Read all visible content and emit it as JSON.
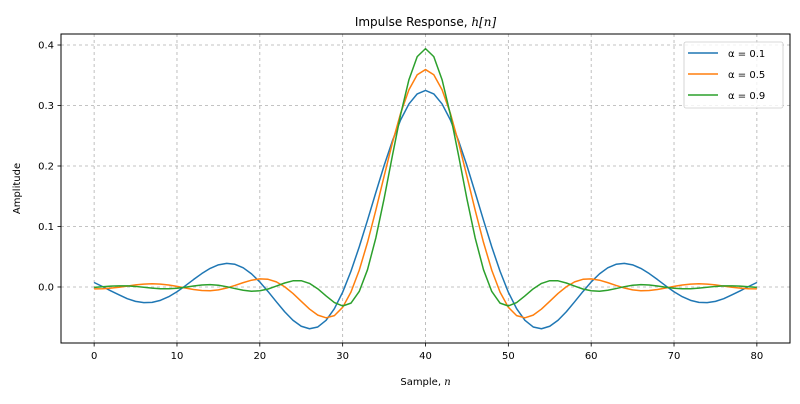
{
  "chart_data": {
    "type": "line",
    "title": {
      "text": "Impulse Response, ",
      "math": "h[n]"
    },
    "xlabel": {
      "text": "Sample, ",
      "math": "n"
    },
    "ylabel": "Amplitude",
    "xlim": [
      -4,
      84
    ],
    "ylim": [
      -0.0926,
      0.4182
    ],
    "xticks": [
      0,
      10,
      20,
      30,
      40,
      50,
      60,
      70,
      80
    ],
    "xtick_labels": [
      "0",
      "10",
      "20",
      "30",
      "40",
      "50",
      "60",
      "70",
      "80"
    ],
    "yticks": [
      0.0,
      0.1,
      0.2,
      0.3,
      0.4
    ],
    "ytick_labels": [
      "0.0",
      "0.1",
      "0.2",
      "0.3",
      "0.4"
    ],
    "grid": true,
    "grid_style": "dashed",
    "legend_position": "top-right",
    "x_start": 0,
    "x_step": 1,
    "series": [
      {
        "name": "α = 0.1",
        "color": "#1f77b4",
        "values": [
          0.0074,
          0.0008,
          -0.0064,
          -0.013,
          -0.0194,
          -0.0238,
          -0.0259,
          -0.0254,
          -0.0221,
          -0.0161,
          -0.0079,
          0.0019,
          0.0123,
          0.0222,
          0.0307,
          0.0366,
          0.0391,
          0.0375,
          0.0317,
          0.0217,
          0.0083,
          -0.0076,
          -0.0245,
          -0.0409,
          -0.055,
          -0.0649,
          -0.069,
          -0.0661,
          -0.0551,
          -0.0359,
          -0.0086,
          0.026,
          0.0663,
          0.1104,
          0.156,
          0.2006,
          0.2414,
          0.2762,
          0.3026,
          0.3192,
          0.3249,
          0.3192,
          0.3026,
          0.2762,
          0.2414,
          0.2006,
          0.156,
          0.1104,
          0.0663,
          0.026,
          -0.0086,
          -0.0359,
          -0.0551,
          -0.0661,
          -0.069,
          -0.0649,
          -0.055,
          -0.0409,
          -0.0245,
          -0.0076,
          0.0083,
          0.0217,
          0.0317,
          0.0375,
          0.0391,
          0.0366,
          0.0307,
          0.0222,
          0.0123,
          0.0019,
          -0.0079,
          -0.0161,
          -0.0221,
          -0.0254,
          -0.0259,
          -0.0238,
          -0.0194,
          -0.013,
          -0.0064,
          0.0008,
          0.0074
        ]
      },
      {
        "name": "α = 0.5",
        "color": "#ff7f0e",
        "values": [
          -0.0032,
          -0.0029,
          -0.0019,
          -0.0004,
          0.0015,
          0.0034,
          0.0048,
          0.0053,
          0.0048,
          0.0033,
          0.001,
          -0.0017,
          -0.0042,
          -0.0059,
          -0.0062,
          -0.0047,
          -0.0017,
          0.0025,
          0.0072,
          0.0112,
          0.0134,
          0.0127,
          0.0084,
          0.0004,
          -0.0107,
          -0.0237,
          -0.0365,
          -0.0465,
          -0.051,
          -0.0473,
          -0.0336,
          -0.0085,
          0.0277,
          0.0737,
          0.1267,
          0.183,
          0.2381,
          0.2872,
          0.326,
          0.3508,
          0.3594,
          0.3508,
          0.326,
          0.2872,
          0.2381,
          0.183,
          0.1267,
          0.0737,
          0.0277,
          -0.0085,
          -0.0336,
          -0.0473,
          -0.051,
          -0.0465,
          -0.0365,
          -0.0237,
          -0.0107,
          0.0004,
          0.0084,
          0.0127,
          0.0134,
          0.0112,
          0.0072,
          0.0025,
          -0.0017,
          -0.0047,
          -0.0062,
          -0.0059,
          -0.0042,
          -0.0017,
          0.001,
          0.0033,
          0.0048,
          0.0053,
          0.0048,
          0.0034,
          0.0015,
          -0.0004,
          -0.0019,
          -0.0029,
          -0.0032
        ]
      },
      {
        "name": "α = 0.9",
        "color": "#2ca02c",
        "values": [
          -0.0007,
          0.0004,
          0.0014,
          0.0019,
          0.0018,
          0.0009,
          -0.0005,
          -0.0019,
          -0.0029,
          -0.003,
          -0.0021,
          -0.0004,
          0.0017,
          0.0033,
          0.0038,
          0.0028,
          0.0005,
          -0.0026,
          -0.0054,
          -0.007,
          -0.0063,
          -0.0033,
          0.0015,
          0.0066,
          0.0102,
          0.0104,
          0.0059,
          -0.0031,
          -0.0148,
          -0.0258,
          -0.0314,
          -0.0267,
          -0.0074,
          0.0286,
          0.0809,
          0.1457,
          0.2167,
          0.2852,
          0.3426,
          0.3808,
          0.394,
          0.3808,
          0.3426,
          0.2852,
          0.2167,
          0.1457,
          0.0809,
          0.0286,
          -0.0074,
          -0.0267,
          -0.0314,
          -0.0258,
          -0.0148,
          -0.0031,
          0.0059,
          0.0104,
          0.0102,
          0.0066,
          0.0015,
          -0.0033,
          -0.0063,
          -0.007,
          -0.0054,
          -0.0026,
          0.0005,
          0.0028,
          0.0038,
          0.0033,
          0.0017,
          -0.0004,
          -0.0021,
          -0.003,
          -0.0029,
          -0.0019,
          -0.0005,
          0.0009,
          0.0018,
          0.0019,
          0.0014,
          0.0004,
          -0.0007
        ]
      }
    ]
  }
}
